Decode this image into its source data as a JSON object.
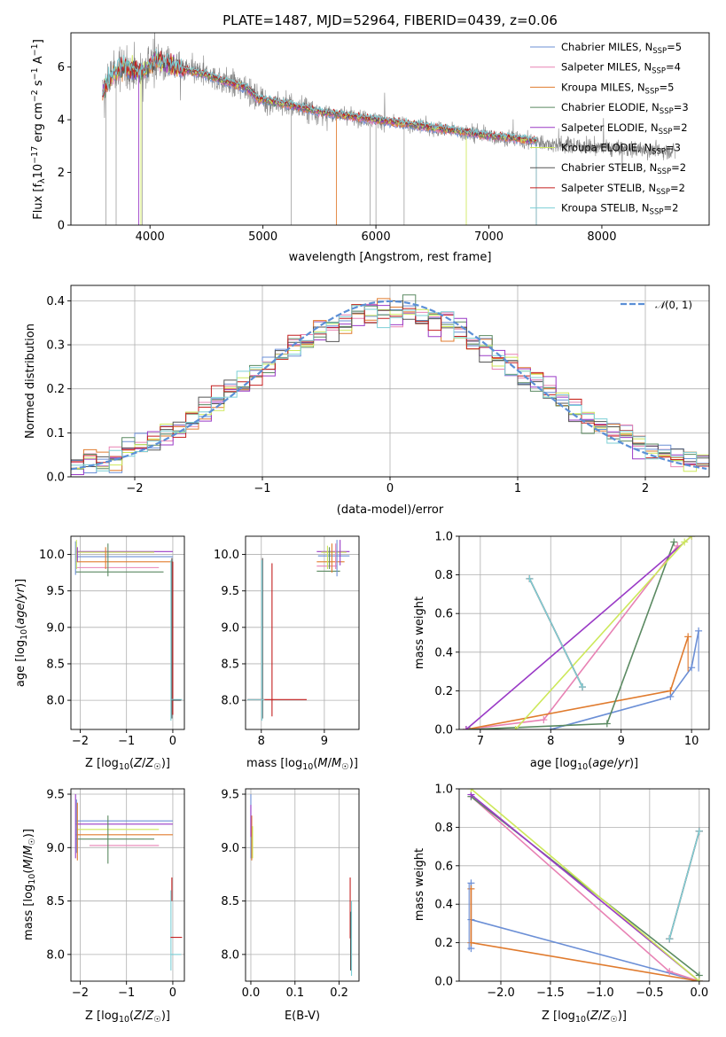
{
  "title": "PLATE=1487, MJD=52964, FIBERID=0439, z=0.06",
  "colors": {
    "observed_spectrum": "#808080",
    "Chabrier MILES": "#6b8fd6",
    "Salpeter MILES": "#e882b4",
    "Kroupa MILES": "#e07b2e",
    "Chabrier ELODIE": "#5b8a62",
    "Salpeter ELODIE": "#9a3ac6",
    "Kroupa ELODIE": "#cde85a",
    "Chabrier STELIB": "#555555",
    "Salpeter STELIB": "#c41f1f",
    "Kroupa STELIB": "#7ccfd6",
    "normal_curve": "#5b8fd6"
  },
  "chart_data": [
    {
      "id": "spectrum",
      "type": "line",
      "xlabel": "wavelength [Angstrom, rest frame]",
      "ylabel": "Flux [fλ10⁻¹⁷ erg cm⁻² s⁻¹ A⁻¹]",
      "xlim": [
        3300,
        8950
      ],
      "ylim": [
        0,
        7.3
      ],
      "xticks": [
        4000,
        5000,
        6000,
        7000,
        8000
      ],
      "yticks": [
        0,
        2,
        4,
        6
      ],
      "model_range": [
        3580,
        7420
      ],
      "data_range": [
        3580,
        8650
      ],
      "model_anchors": {
        "x": [
          3580,
          3650,
          3720,
          3780,
          3840,
          3950,
          4050,
          4150,
          4300,
          4500,
          4700,
          4860,
          4950,
          5200,
          5500,
          6000,
          6500,
          7000,
          7420
        ],
        "y": [
          5.0,
          5.6,
          5.9,
          6.0,
          5.9,
          5.8,
          6.3,
          6.1,
          5.9,
          5.7,
          5.4,
          5.2,
          4.8,
          4.6,
          4.3,
          4.0,
          3.7,
          3.4,
          3.2
        ]
      },
      "data_anchors": {
        "x": [
          3580,
          3650,
          3720,
          3780,
          3840,
          3950,
          4050,
          4150,
          4300,
          4500,
          4700,
          4860,
          4950,
          5200,
          5500,
          6000,
          6500,
          7000,
          7500,
          8000,
          8650
        ],
        "y": [
          5.0,
          5.6,
          5.9,
          6.0,
          5.9,
          5.8,
          6.3,
          6.1,
          5.9,
          5.7,
          5.4,
          5.2,
          4.8,
          4.6,
          4.3,
          4.0,
          3.7,
          3.4,
          3.1,
          2.95,
          2.8
        ]
      },
      "legend_position": "upper right",
      "series": [
        {
          "name": "Chabrier MILES, N$_{SSP}$=5",
          "label": "Chabrier MILES, N",
          "sub": "SSP",
          "tail": "=5"
        },
        {
          "name": "Salpeter MILES, N$_{SSP}$=4",
          "label": "Salpeter MILES, N",
          "sub": "SSP",
          "tail": "=4"
        },
        {
          "name": "Kroupa MILES, N$_{SSP}$=5",
          "label": "Kroupa MILES, N",
          "sub": "SSP",
          "tail": "=5"
        },
        {
          "name": "Chabrier ELODIE, N$_{SSP}$=3",
          "label": "Chabrier ELODIE, N",
          "sub": "SSP",
          "tail": "=3"
        },
        {
          "name": "Salpeter ELODIE, N$_{SSP}$=2",
          "label": "Salpeter ELODIE, N",
          "sub": "SSP",
          "tail": "=2"
        },
        {
          "name": "Kroupa ELODIE, N$_{SSP}$=3",
          "label": "Kroupa ELODIE, N",
          "sub": "SSP",
          "tail": "=3"
        },
        {
          "name": "Chabrier STELIB, N$_{SSP}$=2",
          "label": "Chabrier STELIB, N",
          "sub": "SSP",
          "tail": "=2"
        },
        {
          "name": "Salpeter STELIB, N$_{SSP}$=2",
          "label": "Salpeter STELIB, N",
          "sub": "SSP",
          "tail": "=2"
        },
        {
          "name": "Kroupa STELIB, N$_{SSP}$=2",
          "label": "Kroupa STELIB, N",
          "sub": "SSP",
          "tail": "=2"
        }
      ]
    },
    {
      "id": "residuals",
      "type": "histogram",
      "xlabel": "(data-model)/error",
      "ylabel": "Normed distribution",
      "xlim": [
        -2.5,
        2.5
      ],
      "ylim": [
        0,
        0.435
      ],
      "xticks": [
        -2,
        -1,
        0,
        1,
        2
      ],
      "yticks": [
        0.0,
        0.1,
        0.2,
        0.3,
        0.4
      ],
      "bin_width": 0.1,
      "grid": true,
      "legend": "$\\mathcal{N}(0,1)$",
      "legend_position": "upper right",
      "normal_curve": {
        "mean": 0,
        "sigma": 1
      }
    },
    {
      "id": "age_vs_Z",
      "type": "errorbar",
      "xlabel": "Z [log10(Z/Z☉)]",
      "ylabel": "age  [log10(age/yr)]",
      "xlim": [
        -2.2,
        0.25
      ],
      "ylim": [
        7.6,
        10.25
      ],
      "xticks": [
        -2,
        -1,
        0
      ],
      "yticks": [
        8.0,
        8.5,
        9.0,
        9.5,
        10.0
      ]
    },
    {
      "id": "age_vs_mass",
      "type": "errorbar",
      "xlabel": "mass [log10(M/M☉)]",
      "ylabel": "",
      "xlim": [
        7.75,
        9.55
      ],
      "ylim": [
        7.6,
        10.25
      ],
      "xticks": [
        8,
        9
      ],
      "yticks": [
        8.0,
        8.5,
        9.0,
        9.5,
        10.0
      ]
    },
    {
      "id": "weight_vs_age",
      "type": "line",
      "xlabel": "age  [log10(age/yr)]",
      "ylabel": "mass weight",
      "xlim": [
        6.7,
        10.25
      ],
      "ylim": [
        0,
        1
      ],
      "xticks": [
        7,
        8,
        9,
        10
      ],
      "yticks": [
        0.0,
        0.2,
        0.4,
        0.6,
        0.8,
        1.0
      ],
      "series": [
        {
          "name": "Chabrier MILES",
          "x": [
            8.0,
            9.7,
            10.0,
            10.1
          ],
          "y": [
            0.0,
            0.17,
            0.32,
            0.51
          ]
        },
        {
          "name": "Salpeter MILES",
          "x": [
            6.8,
            7.9,
            9.8
          ],
          "y": [
            0.0,
            0.05,
            0.95
          ]
        },
        {
          "name": "Kroupa MILES",
          "x": [
            6.8,
            9.7,
            9.95
          ],
          "y": [
            0.0,
            0.2,
            0.48
          ]
        },
        {
          "name": "Chabrier ELODIE",
          "x": [
            6.85,
            8.8,
            9.75
          ],
          "y": [
            0.0,
            0.03,
            0.97
          ]
        },
        {
          "name": "Salpeter ELODIE",
          "x": [
            6.8,
            10.0
          ],
          "y": [
            0.0,
            1.0
          ]
        },
        {
          "name": "Kroupa ELODIE",
          "x": [
            7.5,
            9.9,
            10.0
          ],
          "y": [
            0.0,
            0.97,
            1.0
          ]
        },
        {
          "name": "Chabrier STELIB",
          "x": [
            7.7,
            8.45
          ],
          "y": [
            0.78,
            0.22
          ]
        },
        {
          "name": "Salpeter STELIB",
          "x": [
            7.7,
            8.45
          ],
          "y": [
            0.78,
            0.22
          ]
        },
        {
          "name": "Kroupa STELIB",
          "x": [
            7.7,
            8.45
          ],
          "y": [
            0.78,
            0.22
          ]
        }
      ]
    },
    {
      "id": "mass_vs_Z",
      "type": "errorbar",
      "xlabel": "Z [log10(Z/Z☉)]",
      "ylabel": "mass [log10(M/M☉)]",
      "xlim": [
        -2.2,
        0.25
      ],
      "ylim": [
        7.75,
        9.55
      ],
      "xticks": [
        -2,
        -1,
        0
      ],
      "yticks": [
        8.0,
        8.5,
        9.0,
        9.5
      ]
    },
    {
      "id": "mass_vs_ebv",
      "type": "errorbar",
      "xlabel": "E(B-V)",
      "ylabel": "",
      "xlim": [
        -0.012,
        0.245
      ],
      "ylim": [
        7.75,
        9.55
      ],
      "xticks": [
        0.0,
        0.1,
        0.2
      ],
      "yticks": [
        8.0,
        8.5,
        9.0,
        9.5
      ]
    },
    {
      "id": "weight_vs_Z",
      "type": "line",
      "xlabel": "Z [log10(Z/Z☉)]",
      "ylabel": "mass weight",
      "xlim": [
        -2.42,
        0.1
      ],
      "ylim": [
        0,
        1
      ],
      "xticks": [
        -2.0,
        -1.5,
        -1.0,
        -0.5,
        0.0
      ],
      "yticks": [
        0.0,
        0.2,
        0.4,
        0.6,
        0.8,
        1.0
      ],
      "series": [
        {
          "name": "Chabrier MILES",
          "x": [
            -2.3,
            -2.3,
            -2.3,
            0.0
          ],
          "y": [
            0.51,
            0.17,
            0.32,
            0.0
          ]
        },
        {
          "name": "Salpeter MILES",
          "x": [
            -2.3,
            -0.3,
            0.0
          ],
          "y": [
            0.96,
            0.05,
            0.0
          ]
        },
        {
          "name": "Kroupa MILES",
          "x": [
            -2.3,
            -2.3,
            0.0
          ],
          "y": [
            0.48,
            0.2,
            0.0
          ]
        },
        {
          "name": "Chabrier ELODIE",
          "x": [
            -2.3,
            0.0
          ],
          "y": [
            0.96,
            0.03
          ]
        },
        {
          "name": "Salpeter ELODIE",
          "x": [
            -2.3,
            0.0
          ],
          "y": [
            0.97,
            0.0
          ]
        },
        {
          "name": "Kroupa ELODIE",
          "x": [
            -2.3,
            0.0
          ],
          "y": [
            1.0,
            0.0
          ]
        },
        {
          "name": "Chabrier STELIB",
          "x": [
            -0.3,
            0.0
          ],
          "y": [
            0.22,
            0.78
          ]
        },
        {
          "name": "Salpeter STELIB",
          "x": [
            -0.3,
            0.0
          ],
          "y": [
            0.22,
            0.78
          ]
        },
        {
          "name": "Kroupa STELIB",
          "x": [
            -0.3,
            0.0
          ],
          "y": [
            0.22,
            0.78
          ]
        }
      ]
    }
  ]
}
